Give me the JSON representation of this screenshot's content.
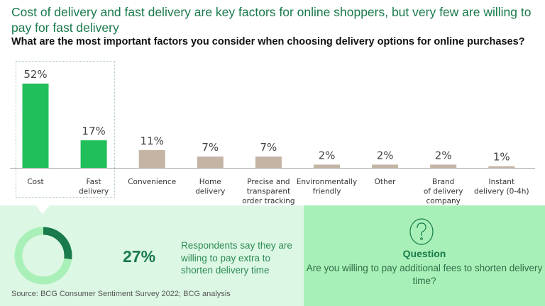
{
  "title": "Cost of delivery and fast delivery are key factors for online shoppers, but very few are willing to pay for fast delivery",
  "chart_data": {
    "type": "bar",
    "title": "What are the most important factors you consider when choosing delivery options for online purchases?",
    "categories": [
      "Cost",
      "Fast delivery",
      "Convenience",
      "Home delivery",
      "Precise and transparent order tracking",
      "Environmentally friendly",
      "Other",
      "Brand of delivery company",
      "Instant delivery (0-4h)"
    ],
    "category_lines": [
      [
        "Cost"
      ],
      [
        "Fast",
        "delivery"
      ],
      [
        "Convenience"
      ],
      [
        "Home",
        "delivery"
      ],
      [
        "Precise and",
        "transparent",
        "order tracking"
      ],
      [
        "Environmentally",
        "friendly"
      ],
      [
        "Other"
      ],
      [
        "Brand",
        "of delivery",
        "company"
      ],
      [
        "Instant",
        "delivery (0-4h)"
      ]
    ],
    "values": [
      52,
      17,
      11,
      7,
      7,
      2,
      2,
      2,
      1
    ],
    "labels": [
      "52%",
      "17%",
      "11%",
      "7%",
      "7%",
      "2%",
      "2%",
      "2%",
      "1%"
    ],
    "highlighted": [
      true,
      true,
      false,
      false,
      false,
      false,
      false,
      false,
      false
    ],
    "unit": "%",
    "ylim": [
      0,
      55
    ],
    "grid": false,
    "colors": {
      "highlight": "#21bf5b",
      "other": "#c4b4a4"
    }
  },
  "callout": {
    "value": 27,
    "value_label": "27%",
    "text": "Respondents say they are willing to pay extra to shorten delivery time",
    "donut_colors": {
      "fill": "#197a4b",
      "rest": "#a8f0b8"
    }
  },
  "question": {
    "heading": "Question",
    "text": "Are you willing to pay additional fees to shorten delivery time?"
  },
  "source": "Source: BCG Consumer Sentiment Survey 2022; BCG analysis"
}
